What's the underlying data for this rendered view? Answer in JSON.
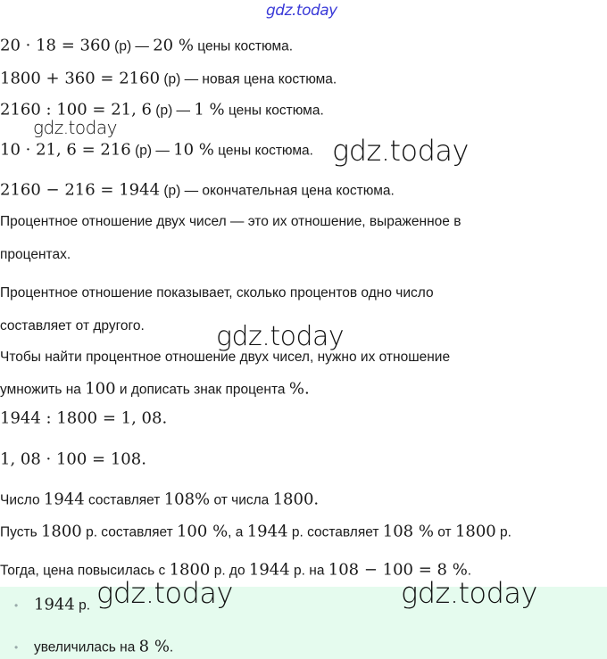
{
  "watermark": "gdz.today",
  "colors": {
    "answer_bg": "#e5fbee",
    "watermark_top": "#3a3ad8"
  },
  "solution": [
    [
      {
        "t": "20 · 18 = 360",
        "m": true
      },
      {
        "t": " (р) — "
      },
      {
        "t": "20 %",
        "m": true
      },
      {
        "t": " цены костюма."
      }
    ],
    [
      {
        "t": "1800 + 360 = 2160",
        "m": true
      },
      {
        "t": " (р) — новая цена костюма."
      }
    ],
    [
      {
        "t": "2160 : 100 = 21, 6",
        "m": true
      },
      {
        "t": " (р) — "
      },
      {
        "t": "1 %",
        "m": true
      },
      {
        "t": " цены костюма."
      }
    ],
    [
      {
        "t": "10 · 21, 6 = 216",
        "m": true
      },
      {
        "t": " (р) — "
      },
      {
        "t": "10 %",
        "m": true
      },
      {
        "t": " цены костюма."
      }
    ],
    [
      {
        "t": "2160 − 216 = 1944",
        "m": true
      },
      {
        "t": " (р) — окончательная цена костюма."
      }
    ],
    [
      {
        "t": "Процентное отношение двух чисел — это их отношение, выраженное в"
      }
    ],
    [
      {
        "t": "процентах."
      }
    ],
    [
      {
        "t": "Процентное отношение показывает, сколько процентов одно число"
      }
    ],
    [
      {
        "t": "составляет от другого."
      }
    ],
    [
      {
        "t": "Чтобы найти процентное отношение двух чисел, нужно их отношение"
      }
    ],
    [
      {
        "t": "умножить на "
      },
      {
        "t": "100",
        "m": true
      },
      {
        "t": " и дописать знак процента "
      },
      {
        "t": "%.",
        "m": true
      }
    ],
    [
      {
        "t": "1944 : 1800 = 1, 08.",
        "m": true
      }
    ],
    [
      {
        "t": "1, 08 · 100 = 108.",
        "m": true
      }
    ],
    [
      {
        "t": "Число "
      },
      {
        "t": "1944",
        "m": true
      },
      {
        "t": " составляет "
      },
      {
        "t": "108%",
        "m": true
      },
      {
        "t": " от числа "
      },
      {
        "t": "1800.",
        "m": true
      }
    ],
    [
      {
        "t": "Пусть "
      },
      {
        "t": "1800",
        "m": true
      },
      {
        "t": " р. составляет "
      },
      {
        "t": "100 %",
        "m": true
      },
      {
        "t": ", а "
      },
      {
        "t": "1944",
        "m": true
      },
      {
        "t": " р. составляет "
      },
      {
        "t": "108 %",
        "m": true
      },
      {
        "t": " от "
      },
      {
        "t": "1800",
        "m": true
      },
      {
        "t": " р."
      }
    ],
    [
      {
        "t": "Тогда, цена повысилась с "
      },
      {
        "t": "1800",
        "m": true
      },
      {
        "t": " р. до "
      },
      {
        "t": "1944",
        "m": true
      },
      {
        "t": " р. на "
      },
      {
        "t": "108 − 100 = 8 %",
        "m": true
      },
      {
        "t": "."
      }
    ]
  ],
  "answers": [
    [
      {
        "t": "1944",
        "m": true
      },
      {
        "t": " р."
      }
    ],
    [
      {
        "t": "увеличилась на "
      },
      {
        "t": "8 %",
        "m": true
      },
      {
        "t": "."
      }
    ]
  ]
}
